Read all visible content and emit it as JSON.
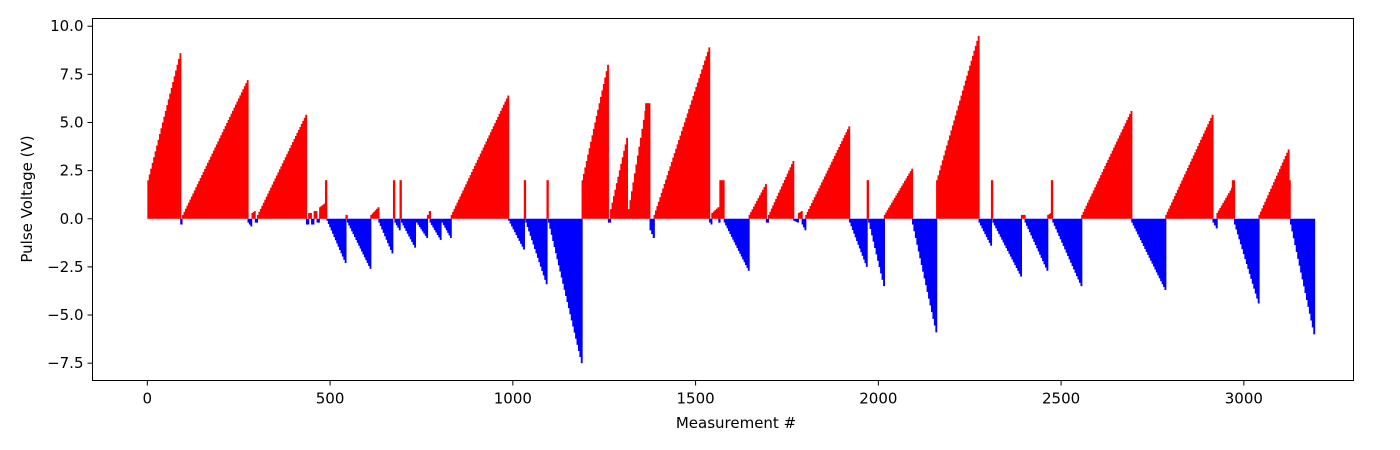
{
  "chart_data": {
    "type": "bar",
    "title": "",
    "xlabel": "Measurement #",
    "ylabel": "Pulse Voltage (V)",
    "xlim": [
      -150,
      3300
    ],
    "ylim": [
      -8.4,
      10.4
    ],
    "xticks": [
      0,
      500,
      1000,
      1500,
      2000,
      2500,
      3000
    ],
    "yticks": [
      -7.5,
      -5.0,
      -2.5,
      0.0,
      2.5,
      5.0,
      7.5,
      10.0
    ],
    "grid": false,
    "colors": {
      "positive": "#ff0000",
      "negative": "#0000ff"
    },
    "series": [
      {
        "color": "#ff0000",
        "segments": [
          {
            "x0": 0,
            "x1": 88,
            "y0": 2.0,
            "y1": 8.6
          },
          {
            "x0": 95,
            "x1": 272,
            "y0": 0.2,
            "y1": 7.2
          },
          {
            "x0": 285,
            "x1": 292,
            "y0": 0.3,
            "y1": 0.4
          },
          {
            "x0": 300,
            "x1": 432,
            "y0": 0.2,
            "y1": 5.4
          },
          {
            "x0": 440,
            "x1": 446,
            "y0": 0.3,
            "y1": 0.3
          },
          {
            "x0": 455,
            "x1": 461,
            "y0": 0.4,
            "y1": 0.4
          },
          {
            "x0": 470,
            "x1": 484,
            "y0": 0.6,
            "y1": 0.8
          },
          {
            "x0": 486,
            "x1": 488,
            "y0": 2.0,
            "y1": 2.0
          },
          {
            "x0": 542,
            "x1": 544,
            "y0": 0.2,
            "y1": 0.2
          },
          {
            "x0": 610,
            "x1": 630,
            "y0": 0.2,
            "y1": 0.6
          },
          {
            "x0": 672,
            "x1": 674,
            "y0": 2.0,
            "y1": 2.0
          },
          {
            "x0": 690,
            "x1": 692,
            "y0": 2.0,
            "y1": 2.0
          },
          {
            "x0": 765,
            "x1": 770,
            "y0": 0.2,
            "y1": 0.4
          },
          {
            "x0": 830,
            "x1": 985,
            "y0": 0.2,
            "y1": 6.4
          },
          {
            "x0": 1030,
            "x1": 1032,
            "y0": 2.0,
            "y1": 2.0
          },
          {
            "x0": 1092,
            "x1": 1094,
            "y0": 2.0,
            "y1": 2.0
          },
          {
            "x0": 1188,
            "x1": 1258,
            "y0": 2.0,
            "y1": 8.0
          },
          {
            "x0": 1266,
            "x1": 1310,
            "y0": 0.5,
            "y1": 4.2
          },
          {
            "x0": 1315,
            "x1": 1360,
            "y0": 0.5,
            "y1": 5.6
          },
          {
            "x0": 1362,
            "x1": 1372,
            "y0": 6.0,
            "y1": 6.0
          },
          {
            "x0": 1385,
            "x1": 1535,
            "y0": 0.2,
            "y1": 8.9
          },
          {
            "x0": 1543,
            "x1": 1560,
            "y0": 0.3,
            "y1": 0.6
          },
          {
            "x0": 1565,
            "x1": 1575,
            "y0": 2.0,
            "y1": 2.0
          },
          {
            "x0": 1645,
            "x1": 1690,
            "y0": 0.2,
            "y1": 1.8
          },
          {
            "x0": 1698,
            "x1": 1765,
            "y0": 0.2,
            "y1": 3.0
          },
          {
            "x0": 1780,
            "x1": 1788,
            "y0": 0.3,
            "y1": 0.4
          },
          {
            "x0": 1800,
            "x1": 1918,
            "y0": 0.2,
            "y1": 4.8
          },
          {
            "x0": 1968,
            "x1": 1970,
            "y0": 2.0,
            "y1": 2.0
          },
          {
            "x0": 2015,
            "x1": 2090,
            "y0": 0.2,
            "y1": 2.6
          },
          {
            "x0": 2158,
            "x1": 2272,
            "y0": 2.0,
            "y1": 9.5
          },
          {
            "x0": 2308,
            "x1": 2310,
            "y0": 2.0,
            "y1": 2.0
          },
          {
            "x0": 2390,
            "x1": 2398,
            "y0": 0.2,
            "y1": 0.2
          },
          {
            "x0": 2462,
            "x1": 2470,
            "y0": 0.2,
            "y1": 0.3
          },
          {
            "x0": 2472,
            "x1": 2474,
            "y0": 2.0,
            "y1": 2.0
          },
          {
            "x0": 2555,
            "x1": 2690,
            "y0": 0.2,
            "y1": 5.6
          },
          {
            "x0": 2785,
            "x1": 2912,
            "y0": 0.2,
            "y1": 5.4
          },
          {
            "x0": 2925,
            "x1": 2965,
            "y0": 0.3,
            "y1": 1.6
          },
          {
            "x0": 2967,
            "x1": 2971,
            "y0": 2.0,
            "y1": 2.0
          },
          {
            "x0": 3040,
            "x1": 3120,
            "y0": 0.2,
            "y1": 3.6
          },
          {
            "x0": 3122,
            "x1": 3124,
            "y0": 2.0,
            "y1": 2.0
          }
        ]
      },
      {
        "color": "#0000ff",
        "segments": [
          {
            "x0": 90,
            "x1": 92,
            "y0": -0.3,
            "y1": -0.3
          },
          {
            "x0": 274,
            "x1": 282,
            "y0": -0.2,
            "y1": -0.4
          },
          {
            "x0": 294,
            "x1": 298,
            "y0": -0.2,
            "y1": -0.2
          },
          {
            "x0": 434,
            "x1": 438,
            "y0": -0.3,
            "y1": -0.3
          },
          {
            "x0": 448,
            "x1": 452,
            "y0": -0.3,
            "y1": -0.3
          },
          {
            "x0": 463,
            "x1": 467,
            "y0": -0.2,
            "y1": -0.2
          },
          {
            "x0": 490,
            "x1": 540,
            "y0": -0.1,
            "y1": -2.3
          },
          {
            "x0": 546,
            "x1": 608,
            "y0": -0.2,
            "y1": -2.6
          },
          {
            "x0": 632,
            "x1": 668,
            "y0": -0.2,
            "y1": -1.8
          },
          {
            "x0": 676,
            "x1": 688,
            "y0": -0.2,
            "y1": -0.6
          },
          {
            "x0": 694,
            "x1": 730,
            "y0": -0.2,
            "y1": -1.5
          },
          {
            "x0": 735,
            "x1": 763,
            "y0": -0.2,
            "y1": -1.0
          },
          {
            "x0": 772,
            "x1": 800,
            "y0": -0.2,
            "y1": -1.1
          },
          {
            "x0": 805,
            "x1": 828,
            "y0": -0.2,
            "y1": -1.0
          },
          {
            "x0": 987,
            "x1": 1028,
            "y0": -0.1,
            "y1": -1.6
          },
          {
            "x0": 1034,
            "x1": 1090,
            "y0": -0.2,
            "y1": -3.4
          },
          {
            "x0": 1096,
            "x1": 1186,
            "y0": -0.2,
            "y1": -7.5
          },
          {
            "x0": 1260,
            "x1": 1264,
            "y0": -0.2,
            "y1": -0.2
          },
          {
            "x0": 1374,
            "x1": 1383,
            "y0": -0.6,
            "y1": -1.0
          },
          {
            "x0": 1537,
            "x1": 1541,
            "y0": -0.2,
            "y1": -0.3
          },
          {
            "x0": 1562,
            "x1": 1564,
            "y0": -0.2,
            "y1": -0.2
          },
          {
            "x0": 1577,
            "x1": 1643,
            "y0": -0.2,
            "y1": -2.7
          },
          {
            "x0": 1692,
            "x1": 1696,
            "y0": -0.2,
            "y1": -0.2
          },
          {
            "x0": 1767,
            "x1": 1778,
            "y0": -0.1,
            "y1": -0.2
          },
          {
            "x0": 1790,
            "x1": 1798,
            "y0": -0.3,
            "y1": -0.6
          },
          {
            "x0": 1920,
            "x1": 1966,
            "y0": -0.2,
            "y1": -2.5
          },
          {
            "x0": 1972,
            "x1": 2013,
            "y0": -0.2,
            "y1": -3.5
          },
          {
            "x0": 2092,
            "x1": 2156,
            "y0": -0.3,
            "y1": -5.9
          },
          {
            "x0": 2274,
            "x1": 2306,
            "y0": -0.2,
            "y1": -1.4
          },
          {
            "x0": 2312,
            "x1": 2388,
            "y0": -0.2,
            "y1": -3.0
          },
          {
            "x0": 2400,
            "x1": 2460,
            "y0": -0.2,
            "y1": -2.7
          },
          {
            "x0": 2476,
            "x1": 2553,
            "y0": -0.2,
            "y1": -3.5
          },
          {
            "x0": 2692,
            "x1": 2783,
            "y0": -0.2,
            "y1": -3.7
          },
          {
            "x0": 2914,
            "x1": 2923,
            "y0": -0.2,
            "y1": -0.5
          },
          {
            "x0": 2973,
            "x1": 3038,
            "y0": -0.3,
            "y1": -4.4
          },
          {
            "x0": 3126,
            "x1": 3190,
            "y0": -0.3,
            "y1": -6.0
          }
        ]
      }
    ]
  }
}
